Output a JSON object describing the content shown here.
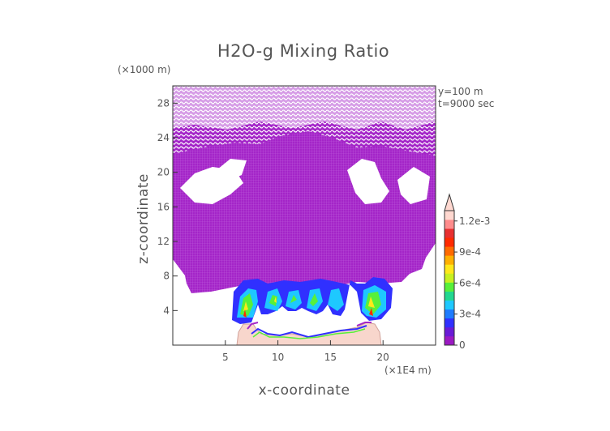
{
  "chart_data": {
    "type": "heatmap",
    "title": "H2O-g Mixing Ratio",
    "xlabel": "x-coordinate",
    "ylabel": "z-coordinate",
    "x_unit": "(×1E4 m)",
    "y_unit": "(×1000 m)",
    "xlim": [
      0,
      25
    ],
    "ylim": [
      0,
      30
    ],
    "x_ticks": [
      "5",
      "10",
      "15",
      "20"
    ],
    "y_ticks": [
      "4",
      "8",
      "12",
      "16",
      "20",
      "24",
      "28"
    ],
    "annotations": [
      "y=100  m",
      "t=9000 sec"
    ],
    "colorbar": {
      "min": 0,
      "max": 0.0013,
      "tick_labels": [
        "0",
        "3e-4",
        "6e-4",
        "9e-4",
        "1.2e-3"
      ],
      "colors": [
        "#9b19c2",
        "#6a1ad6",
        "#3030ff",
        "#1f7cff",
        "#1ec8ff",
        "#22d890",
        "#57f03a",
        "#c8f020",
        "#ffe81a",
        "#ffb000",
        "#ff6a00",
        "#ff2a00",
        "#e83030",
        "#ff8c8c",
        "#ffd8d0"
      ],
      "extend": "max"
    },
    "field_colors": {
      "background_level": "#a425c8",
      "mid_level": "#4a2de0",
      "high_level": "#ffe81a",
      "surface_level": "#f8d6cc"
    }
  }
}
